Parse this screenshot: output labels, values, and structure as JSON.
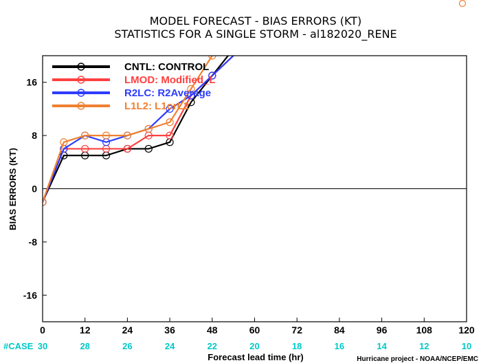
{
  "title_line1": "MODEL FORECAST - BIAS ERRORS (KT)",
  "title_line2": "STATISTICS FOR A SINGLE STORM - al182020_RENE",
  "credit": "Hurricane project - NOAA/NCEP/EMC",
  "case_label": "#CASE",
  "colors": {
    "case_text": "#00c8c8",
    "case_label": "#00c8c8"
  },
  "chart_data": {
    "type": "line",
    "xlabel": "Forecast lead time (hr)",
    "ylabel": "BIAS ERRORS (KT)",
    "xlim": [
      0,
      120
    ],
    "ylim": [
      -20,
      20
    ],
    "x_ticks": [
      "0",
      "12",
      "24",
      "36",
      "48",
      "60",
      "72",
      "84",
      "96",
      "108",
      "120"
    ],
    "y_ticks": [
      "-16",
      "-8",
      "0",
      "8",
      "16"
    ],
    "y_tick_values": [
      -16,
      -8,
      0,
      8,
      16
    ],
    "case_counts": [
      "30",
      "28",
      "26",
      "24",
      "22",
      "20",
      "18",
      "16",
      "14",
      "12",
      "10"
    ],
    "legend_position": "top-left",
    "series": [
      {
        "name": "CNTL: CONTROL",
        "color": "#000000",
        "x": [
          0,
          6,
          12,
          18,
          24,
          30,
          36,
          42,
          48
        ],
        "y": [
          -2,
          5,
          5,
          5,
          6,
          6,
          7,
          13,
          17
        ]
      },
      {
        "name": "LMOD: Modified_L",
        "color": "#ff4040",
        "x": [
          0,
          6,
          12,
          18,
          24,
          30,
          36,
          42,
          48
        ],
        "y": [
          -2,
          6,
          6,
          6,
          6,
          8,
          8,
          14,
          17
        ]
      },
      {
        "name": "R2LC: R2Average",
        "color": "#2c3cff",
        "x": [
          0,
          6,
          12,
          18,
          24,
          30,
          36,
          42,
          48
        ],
        "y": [
          -2,
          6,
          8,
          7,
          8,
          9,
          12,
          14,
          17
        ]
      },
      {
        "name": "L1L2: L1orL2",
        "color": "#f08030",
        "x": [
          0,
          6,
          12,
          18,
          24,
          30,
          36,
          42,
          48
        ],
        "y": [
          -2,
          7,
          8,
          8,
          8,
          9,
          10,
          15,
          20
        ]
      }
    ]
  }
}
